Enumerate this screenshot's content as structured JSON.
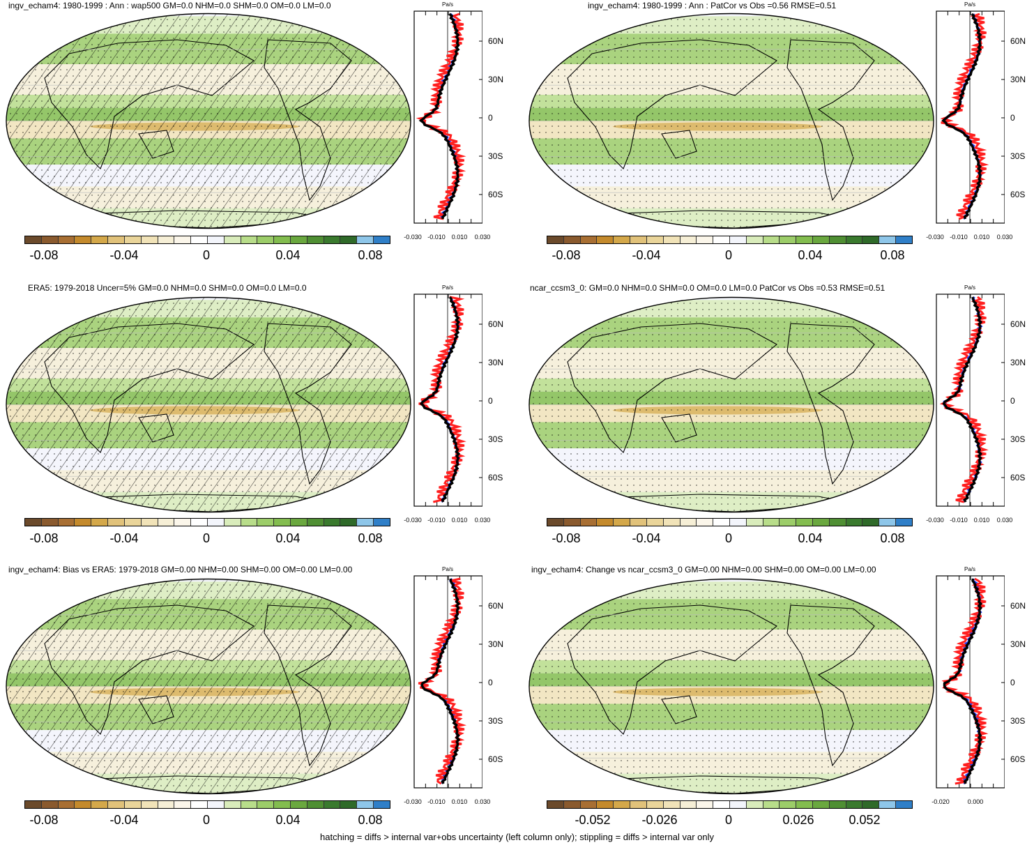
{
  "footer": "hatching = diffs > internal var+obs uncertainty (left column only); stippling = diffs > internal var only",
  "colors": {
    "colorbar": [
      "#6b4a2b",
      "#8a5a2e",
      "#a86f33",
      "#c48a2c",
      "#d4a84a",
      "#e1c27a",
      "#ead59a",
      "#f1e3b8",
      "#f6efd6",
      "#fbf6ea",
      "#ffffff",
      "#f3f5fb",
      "#d9ecbb",
      "#b8dd8a",
      "#9ccd69",
      "#83bd4f",
      "#6aa83f",
      "#4f8f33",
      "#3a7a2e",
      "#2f6a29",
      "#8ec6e9",
      "#2f7fc8"
    ],
    "zonal_lines": {
      "blue": "#1f3fff",
      "red": "#ff1f1f",
      "black": "#000000"
    },
    "map_background": "#f3f5fb"
  },
  "panels": [
    {
      "title": "ingv_echam4: 1980-1999 : Ann : wap500 GM=0.0 NHM=0.0 SHM=0.0 OM=0.0 LM=0.0",
      "colorbar_labels": [
        "-0.08",
        "-0.04",
        "0",
        "0.04",
        "0.08"
      ],
      "zonal_unit": "Pa/s",
      "lat_labels": [
        "60N",
        "30N",
        "0",
        "30S",
        "60S"
      ],
      "x_ticks": [
        "-0.030",
        "-0.010",
        "0.010",
        "0.030"
      ],
      "hatching": true,
      "stippling": true
    },
    {
      "title": "ingv_echam4: 1980-1999 : Ann : PatCor vs Obs =0.56 RMSE=0.51",
      "colorbar_labels": [
        "-0.08",
        "-0.04",
        "0",
        "0.04",
        "0.08"
      ],
      "zonal_unit": "Pa/s",
      "lat_labels": [
        "60N",
        "30N",
        "0",
        "30S",
        "60S"
      ],
      "x_ticks": [
        "-0.030",
        "-0.010",
        "0.010",
        "0.030"
      ],
      "hatching": false,
      "stippling": true
    },
    {
      "title": "ERA5: 1979-2018 Uncer=5% GM=0.0 NHM=0.0 SHM=0.0 OM=0.0 LM=0.0",
      "colorbar_labels": [
        "-0.08",
        "-0.04",
        "0",
        "0.04",
        "0.08"
      ],
      "zonal_unit": "Pa/s",
      "lat_labels": [
        "60N",
        "30N",
        "0",
        "30S",
        "60S"
      ],
      "x_ticks": [
        "-0.030",
        "-0.010",
        "0.010",
        "0.030"
      ],
      "hatching": true,
      "stippling": true
    },
    {
      "title": "ncar_ccsm3_0: GM=0.0 NHM=0.0 SHM=0.0 OM=0.0 LM=0.0 PatCor vs Obs =0.53 RMSE=0.51",
      "colorbar_labels": [
        "-0.08",
        "-0.04",
        "0",
        "0.04",
        "0.08"
      ],
      "zonal_unit": "Pa/s",
      "lat_labels": [
        "60N",
        "30N",
        "0",
        "30S",
        "60S"
      ],
      "x_ticks": [
        "-0.030",
        "-0.010",
        "0.010",
        "0.030"
      ],
      "hatching": false,
      "stippling": true
    },
    {
      "title": "ingv_echam4: Bias vs ERA5: 1979-2018 GM=0.00 NHM=0.00 SHM=0.00 OM=0.00 LM=0.00",
      "colorbar_labels": [
        "-0.08",
        "-0.04",
        "0",
        "0.04",
        "0.08"
      ],
      "zonal_unit": "Pa/s",
      "lat_labels": [
        "60N",
        "30N",
        "0",
        "30S",
        "60S"
      ],
      "x_ticks": [
        "-0.030",
        "-0.010",
        "0.010",
        "0.030"
      ],
      "hatching": true,
      "stippling": true
    },
    {
      "title": "ingv_echam4: Change vs ncar_ccsm3_0 GM=0.00 NHM=0.00 SHM=0.00 OM=0.00 LM=0.00",
      "colorbar_labels": [
        "-0.052",
        "-0.026",
        "0",
        "0.026",
        "0.052"
      ],
      "zonal_unit": "Pa/s",
      "lat_labels": [
        "60N",
        "30N",
        "0",
        "30S",
        "60S"
      ],
      "x_ticks": [
        "-0.020",
        "0.000"
      ],
      "hatching": false,
      "stippling": true
    }
  ]
}
